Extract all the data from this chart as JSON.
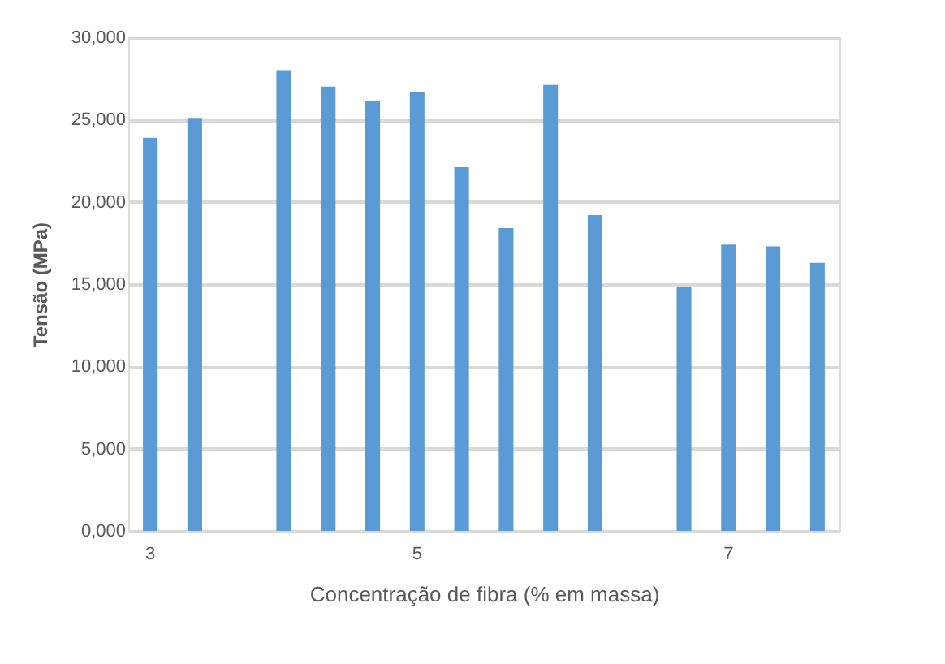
{
  "chart_data": {
    "type": "bar",
    "xlabel": "Concentração de fibra (% em massa)",
    "ylabel": "Tensão (MPa)",
    "categories": [
      "3",
      null,
      null,
      null,
      null,
      null,
      "5",
      null,
      null,
      null,
      null,
      null,
      null,
      "7",
      null,
      null
    ],
    "series": [
      {
        "color": "#5b9bd5",
        "values": [
          23900,
          25100,
          null,
          28000,
          27000,
          26100,
          26700,
          22100,
          18400,
          27100,
          19200,
          null,
          14800,
          17400,
          17300,
          16300
        ]
      }
    ],
    "ylim": [
      0,
      30000
    ],
    "yticks": [
      {
        "value": 0,
        "label": "0,000"
      },
      {
        "value": 5000,
        "label": "5,000"
      },
      {
        "value": 10000,
        "label": "10,000"
      },
      {
        "value": 15000,
        "label": "15,000"
      },
      {
        "value": 20000,
        "label": "20,000"
      },
      {
        "value": 25000,
        "label": "25,000"
      },
      {
        "value": 30000,
        "label": "30,000"
      }
    ],
    "grid": "y",
    "legend": false
  }
}
